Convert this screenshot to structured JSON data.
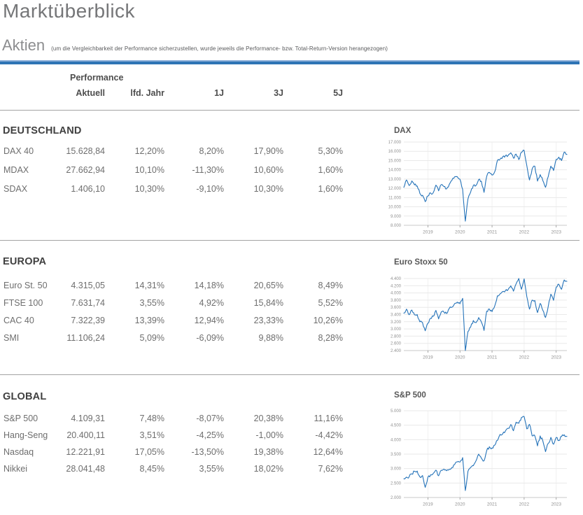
{
  "page": {
    "title": "Marktüberblick"
  },
  "header": {
    "section_label": "Aktien",
    "section_note": "(um die Vergleichbarkeit der Performance sicherzustellen, wurde jeweils die Performance- bzw. Total-Return-Version herangezogen)"
  },
  "table": {
    "group_header": "Performance",
    "columns": [
      "Aktuell",
      "lfd. Jahr",
      "1J",
      "3J",
      "5J"
    ],
    "sections": [
      {
        "title": "DEUTSCHLAND",
        "rows": [
          {
            "name": "DAX 40",
            "values": [
              "15.628,84",
              "12,20%",
              "8,20%",
              "17,90%",
              "5,30%"
            ]
          },
          {
            "name": "MDAX",
            "values": [
              "27.662,94",
              "10,10%",
              "-11,30%",
              "10,60%",
              "1,60%"
            ]
          },
          {
            "name": "SDAX",
            "values": [
              "1.406,10",
              "10,30%",
              "-9,10%",
              "10,30%",
              "1,60%"
            ]
          }
        ]
      },
      {
        "title": "EUROPA",
        "rows": [
          {
            "name": "Euro St. 50",
            "values": [
              "4.315,05",
              "14,31%",
              "14,18%",
              "20,65%",
              "8,49%"
            ]
          },
          {
            "name": "FTSE 100",
            "values": [
              "7.631,74",
              "3,55%",
              "4,92%",
              "15,84%",
              "5,52%"
            ]
          },
          {
            "name": "CAC 40",
            "values": [
              "7.322,39",
              "13,39%",
              "12,94%",
              "23,33%",
              "10,26%"
            ]
          },
          {
            "name": "SMI",
            "values": [
              "11.106,24",
              "5,09%",
              "-6,09%",
              "9,88%",
              "8,28%"
            ]
          }
        ]
      },
      {
        "title": "GLOBAL",
        "rows": [
          {
            "name": "S&P 500",
            "values": [
              "4.109,31",
              "7,48%",
              "-8,07%",
              "20,38%",
              "11,16%"
            ]
          },
          {
            "name": "Hang-Seng",
            "values": [
              "20.400,11",
              "3,51%",
              "-4,25%",
              "-1,00%",
              "-4,42%"
            ]
          },
          {
            "name": "Nasdaq",
            "values": [
              "12.221,91",
              "17,05%",
              "-13,50%",
              "19,38%",
              "12,64%"
            ]
          },
          {
            "name": "Nikkei",
            "values": [
              "28.041,48",
              "8,45%",
              "3,55%",
              "18,02%",
              "7,62%"
            ]
          }
        ]
      }
    ]
  },
  "colors": {
    "accent_blue": "#2e74b5",
    "line_blue": "#2573b9"
  },
  "chart_data": [
    {
      "type": "line",
      "id": "dax",
      "title": "DAX",
      "ylim": [
        8000,
        17000
      ],
      "y_tick_labels": [
        "17.000",
        "16.000",
        "15.000",
        "14.000",
        "13.000",
        "12.000",
        "11.000",
        "10.000",
        "9.000",
        "8.000"
      ],
      "x_tick_labels": [
        "2019",
        "2020",
        "2021",
        "2022",
        "2023"
      ],
      "year_tick_indices": [
        9,
        21,
        33,
        45,
        57
      ],
      "values": [
        12100,
        12900,
        12300,
        12800,
        12370,
        12250,
        11450,
        11250,
        10560,
        11170,
        11500,
        11530,
        12340,
        11730,
        12400,
        12190,
        11940,
        12430,
        12870,
        13240,
        13250,
        12980,
        11890,
        8450,
        10860,
        11590,
        12310,
        12310,
        12950,
        12760,
        11560,
        13290,
        13720,
        13430,
        13790,
        15010,
        15140,
        15420,
        15530,
        15540,
        15840,
        15260,
        15690,
        15100,
        15900,
        16100,
        14460,
        12900,
        14100,
        14390,
        12780,
        13480,
        12830,
        12110,
        13250,
        14400,
        13920,
        15130,
        15370,
        15000,
        15920,
        15660
      ]
    },
    {
      "type": "line",
      "id": "euro-stoxx-50",
      "title": "Euro Stoxx 50",
      "ylim": [
        2400,
        4400
      ],
      "y_tick_labels": [
        "4.400",
        "4.200",
        "4.000",
        "3.800",
        "3.600",
        "3.400",
        "3.200",
        "3.000",
        "2.800",
        "2.600",
        "2.400"
      ],
      "x_tick_labels": [
        "2019",
        "2020",
        "2021",
        "2022",
        "2023"
      ],
      "year_tick_indices": [
        9,
        21,
        33,
        45,
        57
      ],
      "values": [
        3440,
        3550,
        3395,
        3525,
        3392,
        3399,
        3197,
        3173,
        2950,
        3159,
        3298,
        3352,
        3515,
        3280,
        3474,
        3467,
        3427,
        3569,
        3604,
        3704,
        3745,
        3700,
        3850,
        2400,
        2930,
        3050,
        3234,
        3174,
        3316,
        3194,
        2958,
        3493,
        3553,
        3481,
        3636,
        3919,
        3974,
        4039,
        4064,
        4089,
        4196,
        4048,
        4251,
        4400,
        4100,
        4390,
        3900,
        3550,
        3800,
        3790,
        3455,
        3708,
        3517,
        3318,
        3618,
        3965,
        3794,
        4163,
        4238,
        4100,
        4359,
        4320
      ]
    },
    {
      "type": "line",
      "id": "sp-500",
      "title": "S&P 500",
      "ylim": [
        2000,
        5000
      ],
      "y_tick_labels": [
        "5.000",
        "4.500",
        "4.000",
        "3.500",
        "3.000",
        "2.500",
        "2.000"
      ],
      "x_tick_labels": [
        "2019",
        "2020",
        "2021",
        "2022",
        "2023"
      ],
      "year_tick_indices": [
        9,
        21,
        33,
        45,
        57
      ],
      "values": [
        2648,
        2705,
        2718,
        2816,
        2902,
        2914,
        2712,
        2760,
        2351,
        2704,
        2784,
        2834,
        2946,
        2752,
        2942,
        2980,
        2926,
        2977,
        3038,
        3141,
        3231,
        3226,
        3380,
        2240,
        2912,
        3044,
        3100,
        3271,
        3500,
        3363,
        3270,
        3622,
        3756,
        3714,
        3811,
        3973,
        4181,
        4204,
        4298,
        4395,
        4523,
        4308,
        4605,
        4567,
        4766,
        4800,
        4374,
        4530,
        4132,
        4132,
        3785,
        4130,
        3955,
        3586,
        3872,
        4080,
        3840,
        4077,
        3970,
        4109,
        4169,
        4110
      ]
    }
  ]
}
